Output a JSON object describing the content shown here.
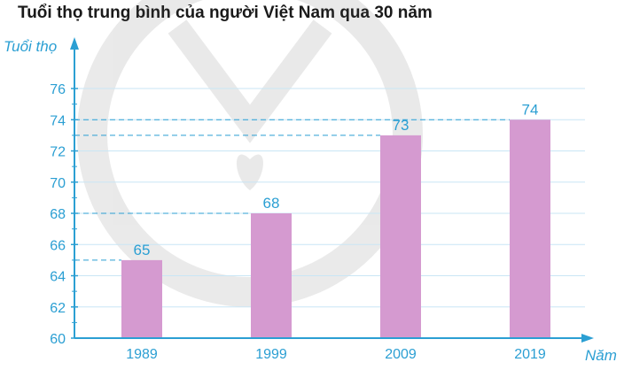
{
  "chart_data": {
    "type": "bar",
    "title": "Tuổi thọ trung bình của người Việt Nam qua 30 năm",
    "ylabel": "Tuổi thọ",
    "xlabel": "Năm",
    "categories": [
      "1989",
      "1999",
      "2009",
      "2019"
    ],
    "values": [
      65,
      68,
      73,
      74
    ],
    "data_labels": [
      "65",
      "68",
      "73",
      "74"
    ],
    "ylim": [
      60,
      76
    ],
    "yticks": [
      60,
      62,
      64,
      66,
      68,
      70,
      72,
      74,
      76
    ],
    "ytick_labels": [
      "60",
      "62",
      "64",
      "66",
      "68",
      "70",
      "72",
      "74",
      "76"
    ],
    "grid": "horizontal",
    "colors": {
      "bar": "#d59ad0",
      "axis": "#2b9fd3",
      "grid": "#c9e6f5",
      "guide": "#2b9fd3"
    }
  }
}
